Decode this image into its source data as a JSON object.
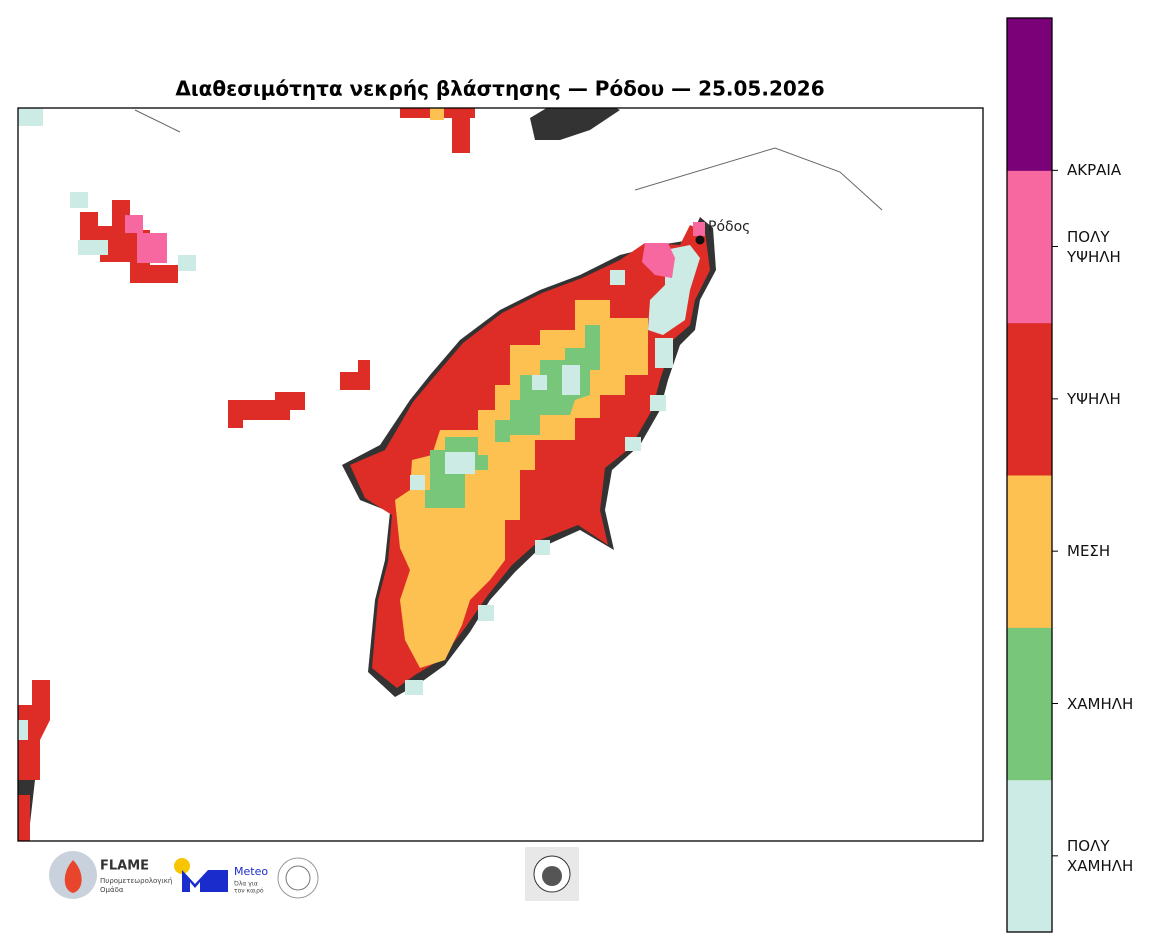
{
  "title": "Διαθεσιμότητα νεκρής βλάστησης — Ρόδου — 25.05.2026",
  "map": {
    "city_label": "Ρόδος"
  },
  "legend": {
    "classes": [
      {
        "label": "ΠΟΛΥ ΧΑΜΗΛΗ",
        "color": "#cdebe5"
      },
      {
        "label": "ΧΑΜΗΛΗ",
        "color": "#78c679"
      },
      {
        "label": "ΜΕΣΗ",
        "color": "#fdc151"
      },
      {
        "label": "ΥΨΗΛΗ",
        "color": "#de2d26"
      },
      {
        "label": "ΠΟΛΥ ΥΨΗΛΗ",
        "color": "#f768a1"
      },
      {
        "label": "ΑΚΡΑΙΑ",
        "color": "#7a0177"
      }
    ]
  },
  "logos": {
    "flame_name": "FLAME",
    "flame_subtitle_1": "Πυρομετεωρολογική",
    "flame_subtitle_2": "Ομάδα",
    "meteo_name": "Meteo",
    "meteo_subtitle_1": "Όλα για",
    "meteo_subtitle_2": "τον καιρό"
  }
}
